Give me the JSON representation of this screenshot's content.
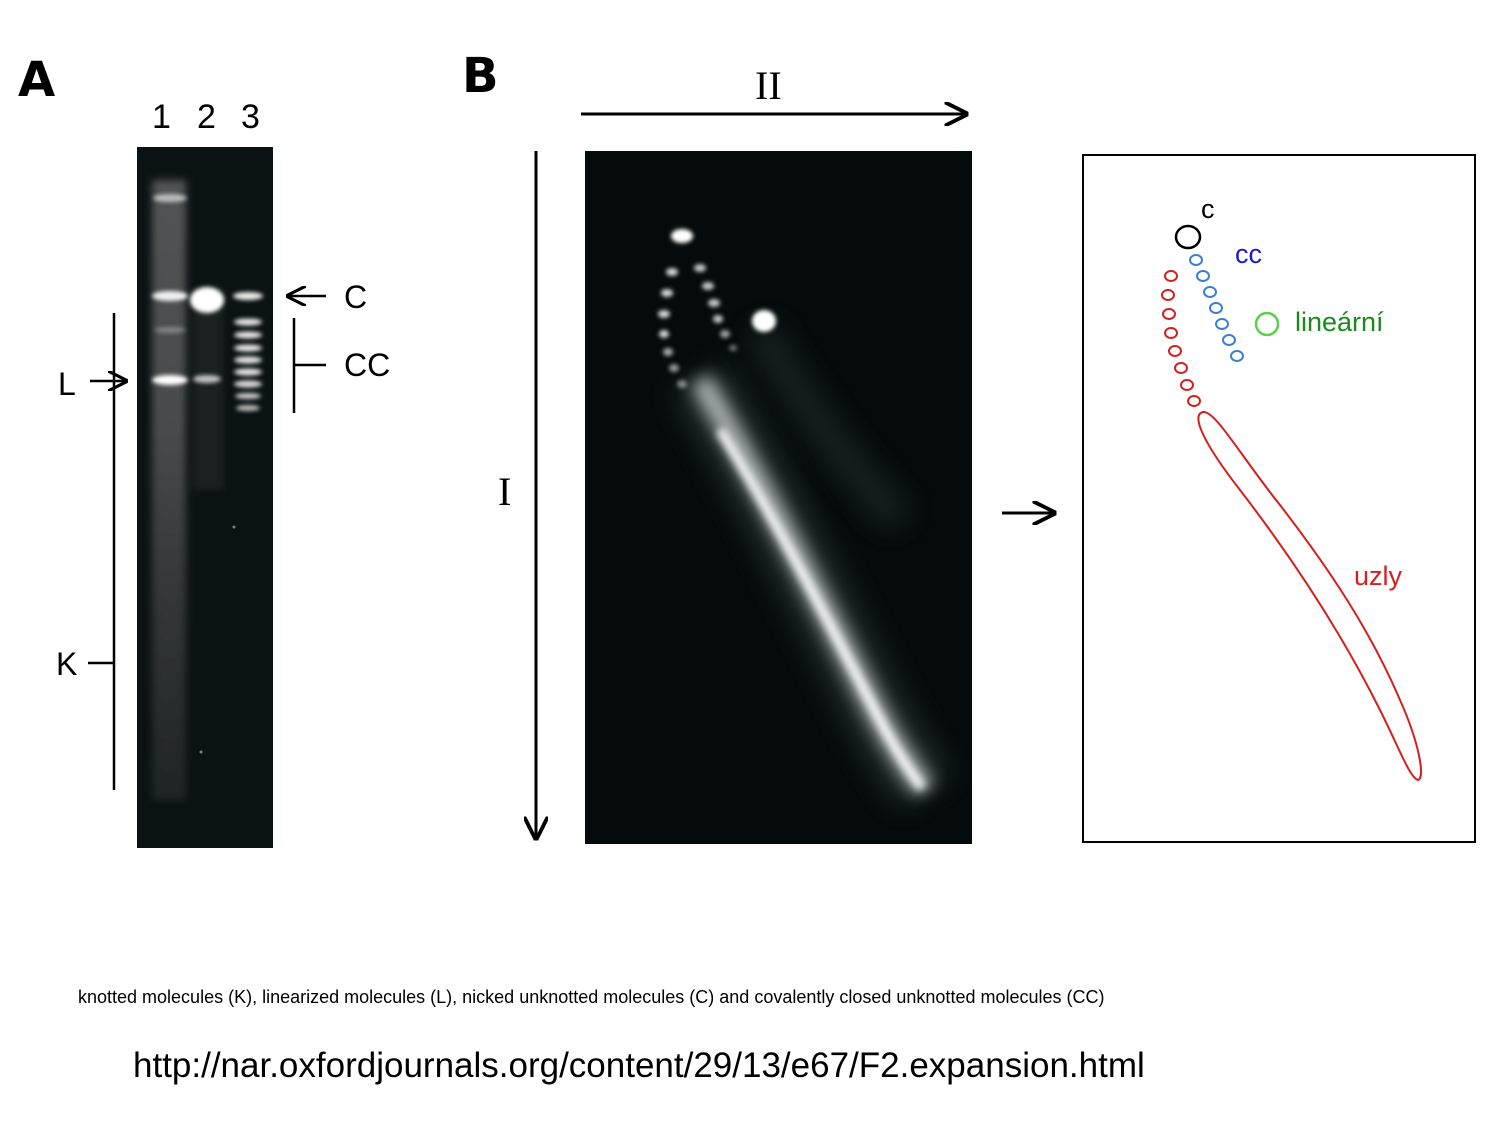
{
  "panel_a": {
    "letter": "A",
    "lanes": [
      "1",
      "2",
      "3"
    ],
    "labels": {
      "c": "C",
      "cc": "CC",
      "l": "L",
      "k": "K"
    }
  },
  "panel_b": {
    "letter": "B",
    "axis_horizontal": "II",
    "axis_vertical": "I",
    "schematic": {
      "c": "c",
      "cc": "cc",
      "linear": "lineární",
      "knots": "uzly",
      "colors": {
        "c": "#000000",
        "cc": "#3a7fd0",
        "linear": "#5ad04a",
        "knots": "#d42020",
        "cc_text": "#1a1acc",
        "linear_text": "#1a8a1a",
        "knots_text": "#d42020"
      }
    }
  },
  "caption": "knotted molecules (K), linearized molecules (L), nicked unknotted molecules (C) and covalently closed unknotted molecules (CC)",
  "url": "http://nar.oxfordjournals.org/content/29/13/e67/F2.expansion.html"
}
